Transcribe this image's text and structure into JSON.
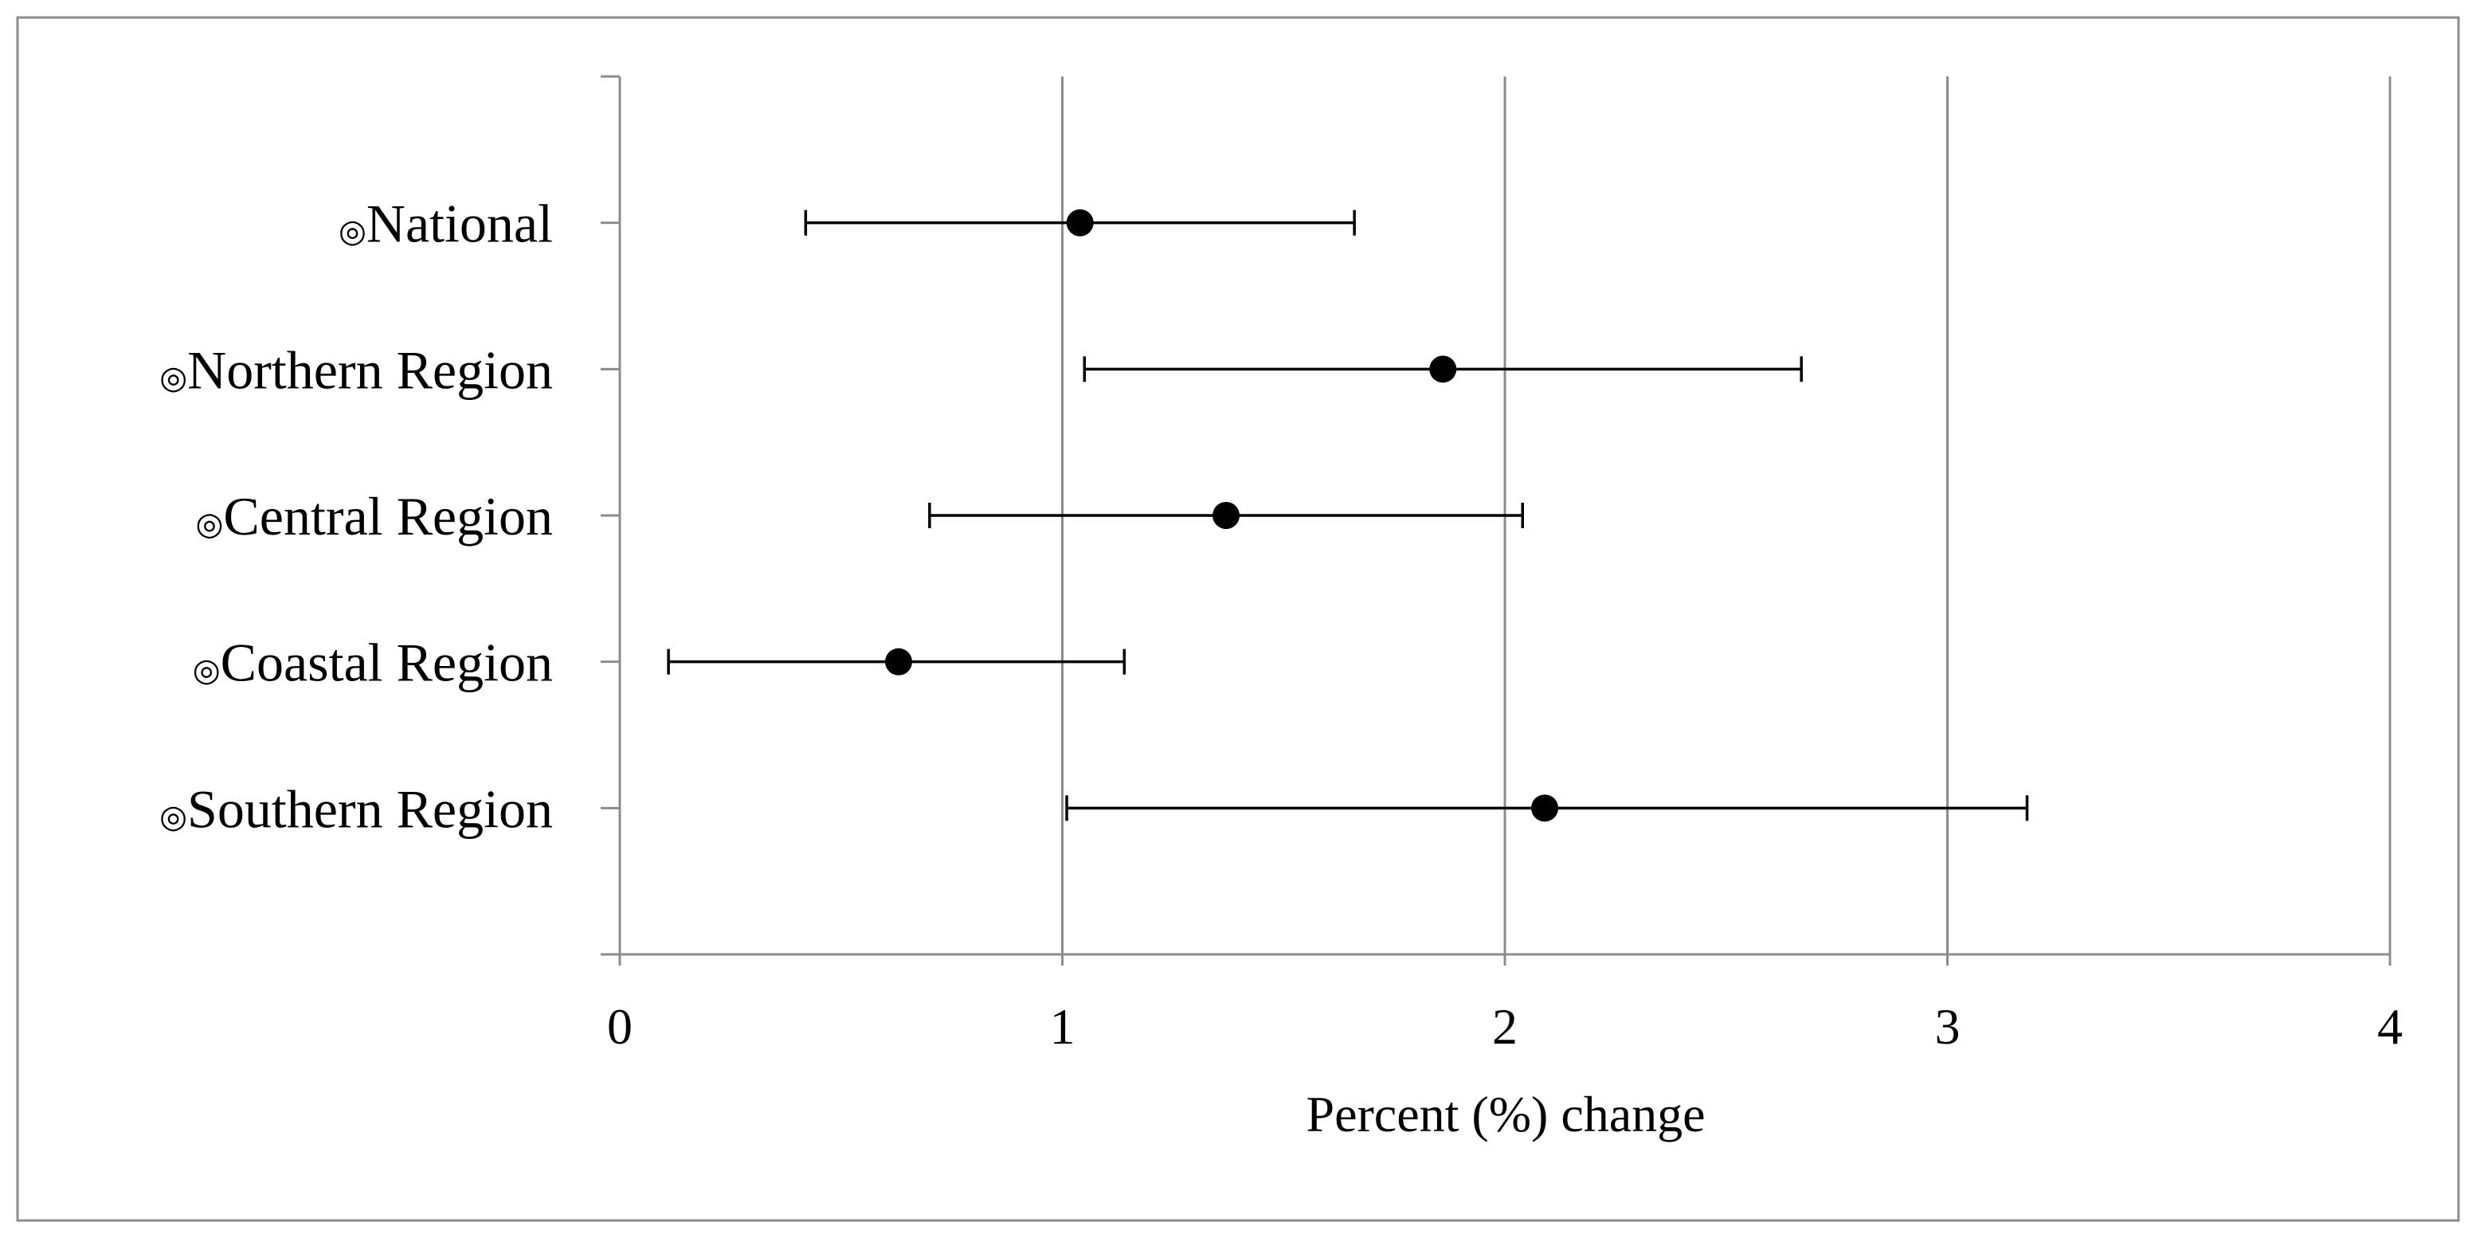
{
  "chart_data": {
    "type": "scatter",
    "orientation": "horizontal",
    "categories": [
      "National",
      "Northern Region",
      "Central Region",
      "Coastal Region",
      "Southern Region"
    ],
    "label_marker": "◎",
    "series": [
      {
        "values": [
          1.04,
          1.86,
          1.37,
          0.63,
          2.09
        ],
        "ci_lower": [
          0.42,
          1.05,
          0.7,
          0.11,
          1.01
        ],
        "ci_upper": [
          1.66,
          2.67,
          2.04,
          1.14,
          3.18
        ]
      }
    ],
    "xlabel": "Percent (%) change",
    "ylabel": "",
    "xlim": [
      0,
      4
    ],
    "xticks": [
      "0",
      "1",
      "2",
      "3",
      "4"
    ],
    "grid": "vertical",
    "colors": {
      "marker": "#000000",
      "errorbar": "#000000",
      "grid": "#8c8c8c",
      "frame": "#8c8c8c"
    }
  }
}
